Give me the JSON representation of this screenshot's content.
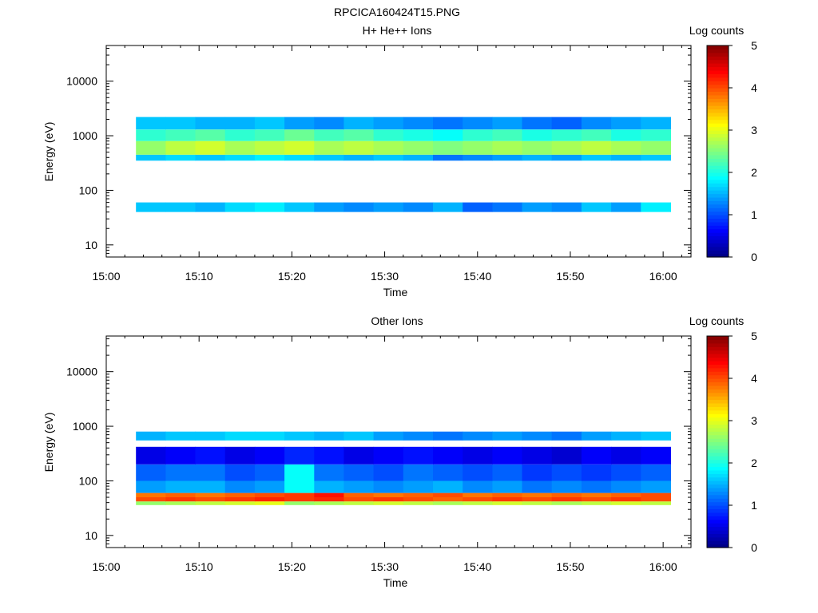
{
  "figure_title": "RPCICA160424T15.PNG",
  "chart_data": [
    {
      "type": "heatmap",
      "title": "H+ He++ Ions",
      "xlabel": "Time",
      "ylabel": "Energy (eV)",
      "x_ticks": [
        "15:00",
        "15:10",
        "15:20",
        "15:30",
        "15:40",
        "15:50",
        "16:00"
      ],
      "x_range_min": [
        0,
        63
      ],
      "y_scale": "log",
      "y_range": [
        6,
        45000
      ],
      "y_ticks": [
        {
          "value": 10,
          "label": "10"
        },
        {
          "value": 100,
          "label": "100"
        },
        {
          "value": 1000,
          "label": "1000"
        },
        {
          "value": 10000,
          "label": "10000"
        }
      ],
      "colorbar": {
        "label": "Log counts",
        "range": [
          0,
          5
        ],
        "ticks": [
          "0",
          "1",
          "2",
          "3",
          "4",
          "5"
        ],
        "colormap": "jet"
      },
      "time_bin_min": [
        3.2,
        6.4,
        9.6,
        12.8,
        16.0,
        19.2,
        22.4,
        25.6,
        28.8,
        32.0,
        35.2,
        38.4,
        41.6,
        44.8,
        48.0,
        51.2,
        54.4,
        57.6
      ],
      "bands": [
        {
          "e_lo": 40,
          "e_hi": 60,
          "values": [
            1.6,
            1.6,
            1.5,
            1.7,
            1.8,
            1.6,
            1.4,
            1.3,
            1.4,
            1.3,
            1.5,
            1.1,
            1.2,
            1.4,
            1.3,
            1.6,
            1.4,
            1.8
          ]
        },
        {
          "e_lo": 350,
          "e_hi": 450,
          "values": [
            1.6,
            1.7,
            1.6,
            1.7,
            1.8,
            1.7,
            1.6,
            1.5,
            1.6,
            1.5,
            1.2,
            1.3,
            1.4,
            1.5,
            1.4,
            1.6,
            1.5,
            1.6
          ]
        },
        {
          "e_lo": 450,
          "e_hi": 800,
          "values": [
            2.6,
            2.8,
            2.9,
            2.7,
            2.8,
            2.9,
            2.7,
            2.8,
            2.7,
            2.6,
            2.5,
            2.6,
            2.7,
            2.6,
            2.7,
            2.8,
            2.7,
            2.6
          ]
        },
        {
          "e_lo": 800,
          "e_hi": 1300,
          "values": [
            2.1,
            2.2,
            2.3,
            2.1,
            2.2,
            2.4,
            2.2,
            2.3,
            2.1,
            2.0,
            1.9,
            2.1,
            2.2,
            2.0,
            2.1,
            2.2,
            2.0,
            2.1
          ]
        },
        {
          "e_lo": 1300,
          "e_hi": 2200,
          "values": [
            1.6,
            1.6,
            1.5,
            1.5,
            1.6,
            1.4,
            1.3,
            1.5,
            1.4,
            1.3,
            1.2,
            1.3,
            1.4,
            1.2,
            1.1,
            1.3,
            1.4,
            1.5
          ]
        }
      ]
    },
    {
      "type": "heatmap",
      "title": "Other Ions",
      "xlabel": "Time",
      "ylabel": "Energy (eV)",
      "x_ticks": [
        "15:00",
        "15:10",
        "15:20",
        "15:30",
        "15:40",
        "15:50",
        "16:00"
      ],
      "x_range_min": [
        0,
        63
      ],
      "y_scale": "log",
      "y_range": [
        6,
        45000
      ],
      "y_ticks": [
        {
          "value": 10,
          "label": "10"
        },
        {
          "value": 100,
          "label": "100"
        },
        {
          "value": 1000,
          "label": "1000"
        },
        {
          "value": 10000,
          "label": "10000"
        }
      ],
      "colorbar": {
        "label": "Log counts",
        "range": [
          0,
          5
        ],
        "ticks": [
          "0",
          "1",
          "2",
          "3",
          "4",
          "5"
        ],
        "colormap": "jet"
      },
      "time_bin_min": [
        3.2,
        6.4,
        9.6,
        12.8,
        16.0,
        19.2,
        22.4,
        25.6,
        28.8,
        32.0,
        35.2,
        38.4,
        41.6,
        44.8,
        48.0,
        51.2,
        54.4,
        57.6
      ],
      "bands": [
        {
          "e_lo": 36,
          "e_hi": 42,
          "values": [
            2.6,
            2.7,
            2.8,
            2.9,
            3.0,
            2.6,
            2.7,
            2.8,
            2.9,
            2.8,
            2.7,
            2.8,
            2.9,
            2.8,
            2.7,
            2.8,
            2.9,
            2.8
          ]
        },
        {
          "e_lo": 42,
          "e_hi": 50,
          "values": [
            4.0,
            4.1,
            4.0,
            4.1,
            4.2,
            4.1,
            4.2,
            4.0,
            4.1,
            4.0,
            3.9,
            4.0,
            4.1,
            4.0,
            4.1,
            4.0,
            4.1,
            4.0
          ]
        },
        {
          "e_lo": 50,
          "e_hi": 60,
          "values": [
            3.8,
            3.9,
            3.8,
            3.9,
            4.0,
            4.1,
            4.3,
            3.9,
            3.8,
            3.9,
            4.0,
            3.8,
            3.9,
            3.8,
            3.9,
            3.8,
            3.9,
            4.0
          ]
        },
        {
          "e_lo": 60,
          "e_hi": 100,
          "values": [
            1.4,
            1.5,
            1.5,
            1.3,
            1.4,
            1.9,
            1.5,
            1.4,
            1.3,
            1.4,
            1.5,
            1.3,
            1.4,
            1.2,
            1.3,
            1.2,
            1.3,
            1.4
          ]
        },
        {
          "e_lo": 100,
          "e_hi": 200,
          "values": [
            1.1,
            1.2,
            1.2,
            1.0,
            1.1,
            1.9,
            1.2,
            1.1,
            1.0,
            1.2,
            1.1,
            1.0,
            1.1,
            0.9,
            1.0,
            0.9,
            1.0,
            1.1
          ]
        },
        {
          "e_lo": 200,
          "e_hi": 420,
          "values": [
            0.5,
            0.6,
            0.7,
            0.5,
            0.6,
            0.8,
            0.7,
            0.5,
            0.6,
            0.7,
            0.6,
            0.5,
            0.6,
            0.5,
            0.4,
            0.6,
            0.5,
            0.6
          ]
        },
        {
          "e_lo": 550,
          "e_hi": 800,
          "values": [
            1.5,
            1.6,
            1.6,
            1.7,
            1.7,
            1.6,
            1.5,
            1.6,
            1.4,
            1.3,
            1.2,
            1.3,
            1.4,
            1.3,
            1.2,
            1.4,
            1.5,
            1.6
          ]
        }
      ]
    }
  ]
}
